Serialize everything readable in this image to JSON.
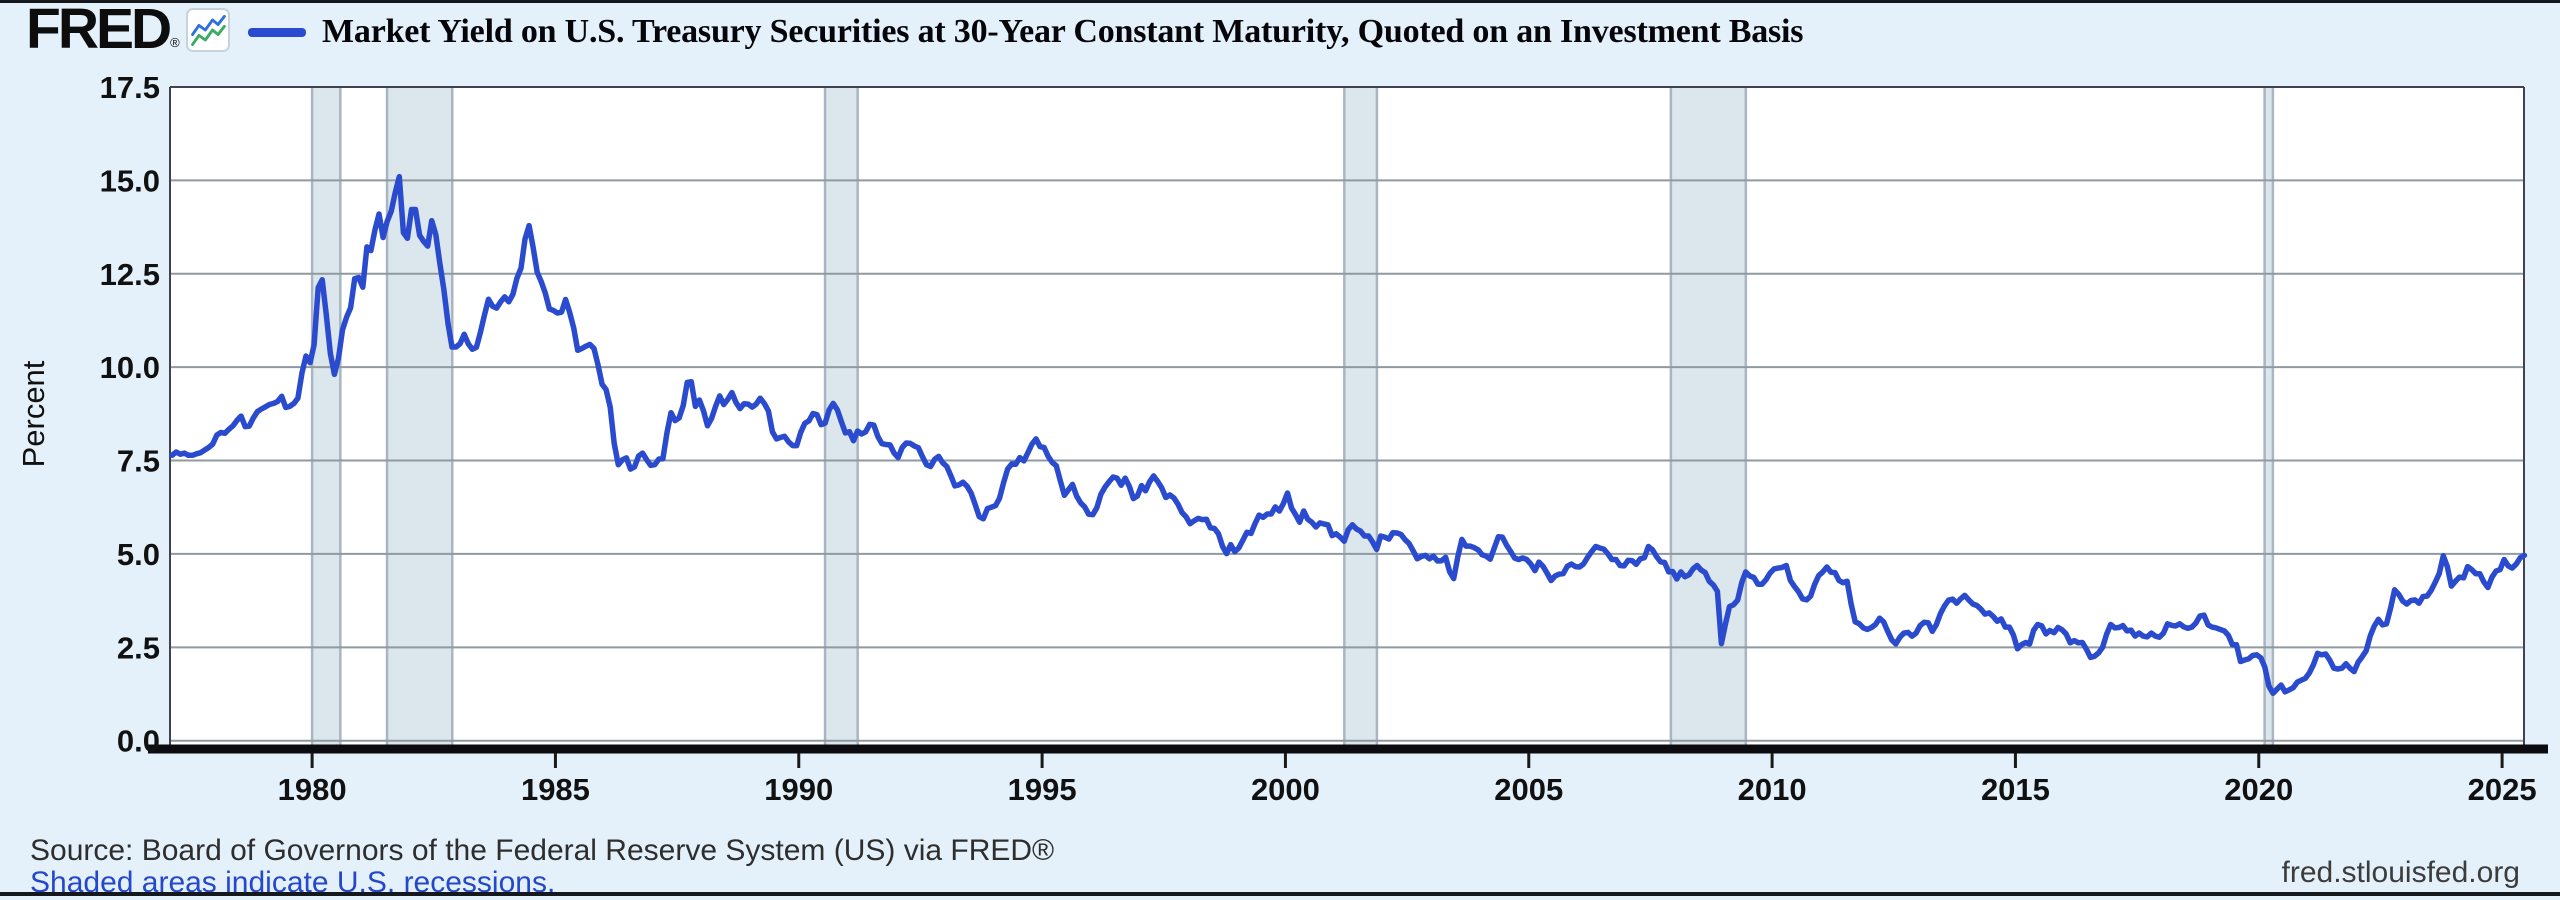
{
  "header": {
    "logo_text": "FRED",
    "logo_mark": "®",
    "legend_label": "Market Yield on U.S. Treasury Securities at 30-Year Constant Maturity, Quoted on an Investment Basis"
  },
  "y_axis": {
    "label": "Percent",
    "tick_labels": [
      "17.5",
      "15.0",
      "12.5",
      "10.0",
      "7.5",
      "5.0",
      "2.5",
      "0.0"
    ]
  },
  "x_axis": {
    "tick_labels": [
      "1980",
      "1985",
      "1990",
      "1995",
      "2000",
      "2005",
      "2010",
      "2015",
      "2020",
      "2025"
    ]
  },
  "footer": {
    "source": "Source: Board of Governors of the Federal Reserve System (US) via FRED®",
    "note": "Shaded areas indicate U.S. recessions.",
    "site": "fred.stlouisfed.org"
  },
  "colors": {
    "page_background": "#e4f1fa",
    "plot_background": "#ffffff",
    "line": "#2b4bce",
    "recession_fill": "#dce6ed",
    "recession_edge": "#a9b6c2",
    "gridline": "#8f9aa0",
    "plot_border": "#3f4450",
    "axis": "#0c0c10",
    "tick": "#1a1a1a",
    "label_text": "#111111",
    "link_blue": "#2547cb",
    "logo_icon_blue": "#2f6fe0",
    "logo_icon_green": "#3cab63"
  },
  "chart_data": {
    "type": "line",
    "title": "Market Yield on U.S. Treasury Securities at 30-Year Constant Maturity, Quoted on an Investment Basis",
    "xlabel": "",
    "ylabel": "Percent",
    "legend_position": "top",
    "grid": "horizontal-only",
    "xlim": [
      1977.08,
      2025.45
    ],
    "ylim": [
      0,
      17.5
    ],
    "x_ticks": [
      1980,
      1985,
      1990,
      1995,
      2000,
      2005,
      2010,
      2015,
      2020,
      2025
    ],
    "y_ticks": [
      0,
      2.5,
      5,
      7.5,
      10,
      12.5,
      15,
      17.5
    ],
    "recessions": [
      [
        1980.0,
        1980.58
      ],
      [
        1981.54,
        1982.88
      ],
      [
        1990.54,
        1991.21
      ],
      [
        2001.21,
        2001.88
      ],
      [
        2007.92,
        2009.46
      ],
      [
        2020.12,
        2020.29
      ]
    ],
    "series_name": "Market Yield on U.S. Treasury Securities at 30-Year Constant Maturity, Quoted on an Investment Basis",
    "units": "Percent",
    "frequency": "monthly",
    "start_year_fraction": 1977.125,
    "step_years": 0.0833333,
    "values": [
      7.64,
      7.73,
      7.67,
      7.7,
      7.64,
      7.64,
      7.68,
      7.71,
      7.78,
      7.85,
      7.94,
      8.18,
      8.25,
      8.23,
      8.34,
      8.43,
      8.58,
      8.69,
      8.41,
      8.42,
      8.64,
      8.81,
      8.88,
      8.94,
      9.0,
      9.03,
      9.08,
      9.22,
      8.92,
      8.95,
      9.03,
      9.17,
      9.85,
      10.3,
      10.12,
      10.6,
      12.13,
      12.34,
      11.4,
      10.36,
      9.81,
      10.24,
      11.0,
      11.34,
      11.59,
      12.37,
      12.4,
      12.14,
      13.22,
      13.12,
      13.68,
      14.1,
      13.47,
      13.9,
      14.17,
      14.67,
      15.1,
      13.6,
      13.45,
      14.22,
      14.22,
      13.53,
      13.37,
      13.24,
      13.92,
      13.55,
      12.77,
      12.07,
      11.17,
      10.54,
      10.54,
      10.63,
      10.88,
      10.63,
      10.48,
      10.53,
      10.93,
      11.4,
      11.82,
      11.63,
      11.58,
      11.75,
      11.88,
      11.75,
      11.95,
      12.38,
      12.65,
      13.43,
      13.79,
      13.21,
      12.54,
      12.29,
      11.98,
      11.56,
      11.52,
      11.45,
      11.47,
      11.81,
      11.47,
      11.05,
      10.45,
      10.5,
      10.56,
      10.61,
      10.5,
      10.06,
      9.54,
      9.4,
      8.93,
      7.96,
      7.39,
      7.52,
      7.57,
      7.27,
      7.33,
      7.62,
      7.7,
      7.52,
      7.37,
      7.39,
      7.54,
      7.55,
      8.25,
      8.78,
      8.57,
      8.64,
      8.97,
      9.59,
      9.61,
      8.95,
      9.12,
      8.83,
      8.43,
      8.63,
      8.95,
      9.23,
      9.0,
      9.14,
      9.32,
      9.06,
      8.89,
      9.02,
      9.01,
      8.93,
      9.01,
      9.17,
      9.03,
      8.83,
      8.27,
      8.08,
      8.12,
      8.15,
      8.0,
      7.9,
      7.9,
      8.26,
      8.5,
      8.56,
      8.76,
      8.73,
      8.46,
      8.5,
      8.86,
      9.03,
      8.86,
      8.54,
      8.24,
      8.27,
      8.03,
      8.29,
      8.21,
      8.27,
      8.47,
      8.45,
      8.14,
      7.95,
      7.93,
      7.92,
      7.7,
      7.58,
      7.85,
      7.97,
      7.96,
      7.89,
      7.84,
      7.6,
      7.39,
      7.34,
      7.53,
      7.61,
      7.44,
      7.34,
      7.09,
      6.82,
      6.85,
      6.92,
      6.81,
      6.63,
      6.32,
      6.0,
      5.94,
      6.21,
      6.25,
      6.29,
      6.49,
      6.91,
      7.27,
      7.41,
      7.4,
      7.58,
      7.49,
      7.71,
      7.94,
      8.08,
      7.87,
      7.85,
      7.61,
      7.45,
      7.36,
      6.95,
      6.57,
      6.72,
      6.86,
      6.55,
      6.37,
      6.26,
      6.06,
      6.05,
      6.24,
      6.6,
      6.79,
      6.93,
      7.06,
      7.03,
      6.84,
      7.03,
      6.81,
      6.48,
      6.55,
      6.83,
      6.69,
      6.93,
      7.09,
      6.94,
      6.77,
      6.51,
      6.58,
      6.5,
      6.33,
      6.11,
      5.99,
      5.81,
      5.89,
      5.95,
      5.92,
      5.93,
      5.7,
      5.68,
      5.54,
      5.2,
      5.01,
      5.25,
      5.06,
      5.16,
      5.37,
      5.58,
      5.55,
      5.81,
      6.04,
      5.98,
      6.07,
      6.07,
      6.26,
      6.15,
      6.35,
      6.63,
      6.23,
      6.05,
      5.85,
      6.15,
      5.93,
      5.85,
      5.72,
      5.83,
      5.8,
      5.78,
      5.49,
      5.54,
      5.45,
      5.34,
      5.65,
      5.78,
      5.67,
      5.61,
      5.48,
      5.48,
      5.32,
      5.12,
      5.48,
      5.45,
      5.4,
      5.57,
      5.56,
      5.52,
      5.38,
      5.28,
      5.08,
      4.87,
      4.93,
      4.96,
      4.87,
      4.94,
      4.81,
      4.82,
      4.91,
      4.52,
      4.34,
      4.92,
      5.39,
      5.21,
      5.21,
      5.17,
      5.11,
      4.98,
      4.94,
      4.86,
      5.16,
      5.46,
      5.45,
      5.24,
      5.07,
      4.89,
      4.85,
      4.89,
      4.85,
      4.73,
      4.55,
      4.78,
      4.67,
      4.49,
      4.29,
      4.41,
      4.46,
      4.47,
      4.67,
      4.73,
      4.66,
      4.65,
      4.73,
      4.91,
      5.06,
      5.2,
      5.16,
      5.13,
      5.0,
      4.85,
      4.85,
      4.69,
      4.68,
      4.83,
      4.82,
      4.72,
      4.87,
      4.9,
      5.2,
      5.11,
      4.93,
      4.79,
      4.77,
      4.52,
      4.53,
      4.33,
      4.52,
      4.39,
      4.44,
      4.6,
      4.69,
      4.57,
      4.5,
      4.27,
      4.17,
      4.0,
      2.6,
      3.13,
      3.59,
      3.64,
      3.76,
      4.23,
      4.52,
      4.41,
      4.37,
      4.19,
      4.19,
      4.31,
      4.49,
      4.6,
      4.62,
      4.64,
      4.69,
      4.29,
      4.13,
      3.99,
      3.8,
      3.77,
      3.87,
      4.19,
      4.42,
      4.52,
      4.65,
      4.51,
      4.5,
      4.29,
      4.23,
      4.27,
      3.65,
      3.18,
      3.13,
      3.02,
      2.98,
      3.03,
      3.11,
      3.28,
      3.18,
      2.93,
      2.7,
      2.59,
      2.77,
      2.88,
      2.9,
      2.8,
      2.88,
      3.08,
      3.17,
      3.16,
      2.93,
      3.11,
      3.4,
      3.61,
      3.76,
      3.79,
      3.68,
      3.8,
      3.89,
      3.77,
      3.66,
      3.62,
      3.52,
      3.39,
      3.42,
      3.33,
      3.2,
      3.26,
      3.04,
      3.04,
      2.83,
      2.46,
      2.57,
      2.63,
      2.59,
      2.96,
      3.11,
      3.07,
      2.86,
      2.95,
      2.89,
      3.03,
      2.97,
      2.86,
      2.62,
      2.68,
      2.62,
      2.63,
      2.45,
      2.23,
      2.26,
      2.35,
      2.5,
      2.86,
      3.11,
      3.02,
      3.03,
      3.08,
      2.94,
      2.96,
      2.8,
      2.88,
      2.8,
      2.78,
      2.88,
      2.8,
      2.77,
      2.88,
      3.13,
      3.09,
      3.07,
      3.13,
      3.05,
      3.01,
      3.04,
      3.15,
      3.34,
      3.36,
      3.1,
      3.04,
      3.02,
      2.98,
      2.94,
      2.82,
      2.57,
      2.57,
      2.12,
      2.16,
      2.19,
      2.28,
      2.3,
      2.22,
      1.97,
      1.46,
      1.27,
      1.38,
      1.49,
      1.31,
      1.36,
      1.42,
      1.57,
      1.62,
      1.67,
      1.82,
      2.04,
      2.34,
      2.3,
      2.32,
      2.16,
      1.94,
      1.92,
      1.94,
      2.06,
      1.94,
      1.85,
      2.1,
      2.25,
      2.41,
      2.81,
      3.07,
      3.25,
      3.1,
      3.13,
      3.55,
      4.04,
      3.92,
      3.74,
      3.66,
      3.75,
      3.77,
      3.68,
      3.86,
      3.87,
      4.02,
      4.24,
      4.47,
      4.95,
      4.66,
      4.14,
      4.27,
      4.38,
      4.36,
      4.66,
      4.58,
      4.47,
      4.47,
      4.25,
      4.1,
      4.38,
      4.54,
      4.58,
      4.85,
      4.68,
      4.62,
      4.73,
      4.9,
      4.96
    ]
  }
}
